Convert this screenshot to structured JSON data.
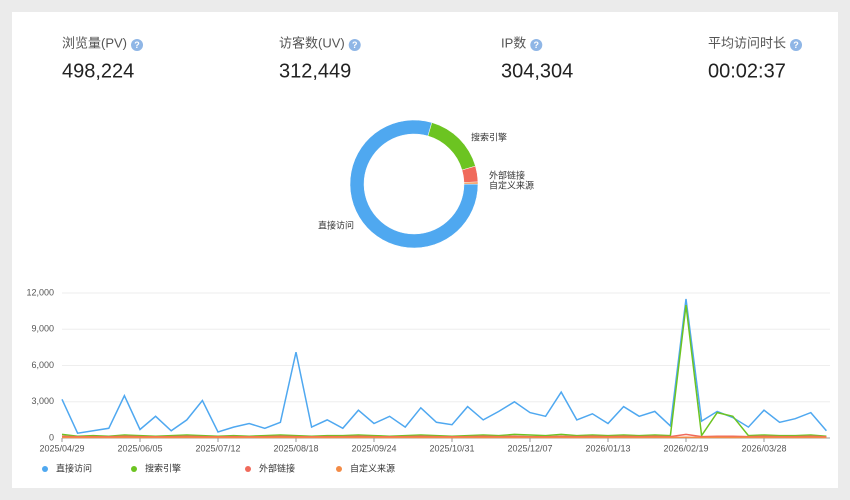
{
  "help_icon": "?",
  "stats": [
    {
      "label": "浏览量(PV)",
      "value": "498,224"
    },
    {
      "label": "访客数(UV)",
      "value": "312,449"
    },
    {
      "label": "IP数",
      "value": "304,304"
    },
    {
      "label": "平均访问时长",
      "value": "00:02:37"
    }
  ],
  "chart_data": [
    {
      "type": "pie",
      "categories": [
        "直接访问",
        "搜索引擎",
        "外部链接",
        "自定义来源"
      ],
      "values": [
        79.5,
        16,
        4,
        0.5
      ],
      "colors": [
        "#4fa8f0",
        "#6cc421",
        "#f06a5b",
        "#f38b46"
      ]
    },
    {
      "type": "line",
      "categories": [
        "2025/04/29",
        null,
        null,
        null,
        null,
        "2025/06/05",
        null,
        null,
        null,
        null,
        "2025/07/12",
        null,
        null,
        null,
        null,
        "2025/08/18",
        null,
        null,
        null,
        null,
        "2025/09/24",
        null,
        null,
        null,
        null,
        "2025/10/31",
        null,
        null,
        null,
        null,
        "2025/12/07",
        null,
        null,
        null,
        null,
        "2026/01/13",
        null,
        null,
        null,
        null,
        "2026/02/19",
        null,
        null,
        null,
        null,
        "2026/03/28",
        null,
        null,
        null,
        null
      ],
      "ylim": [
        0,
        12000
      ],
      "yticks": [
        0,
        {
          "value": 3000,
          "label": "3,000"
        },
        {
          "value": 6000,
          "label": "6,000"
        },
        {
          "value": 9000,
          "label": "9,000"
        },
        {
          "value": 12000,
          "label": "12,000"
        }
      ],
      "grid": true,
      "legend": "bottom",
      "series": [
        {
          "name": "直接访问",
          "color": "#4fa8f0",
          "values": [
            3200,
            400,
            600,
            800,
            3500,
            700,
            1800,
            600,
            1500,
            3100,
            500,
            900,
            1200,
            800,
            1300,
            7100,
            900,
            1500,
            800,
            2300,
            1200,
            1800,
            900,
            2500,
            1300,
            1100,
            2600,
            1500,
            2200,
            3000,
            2100,
            1800,
            3800,
            1500,
            2000,
            1200,
            2600,
            1800,
            2200,
            1000,
            11500,
            1400,
            2200,
            1700,
            900,
            2300,
            1300,
            1600,
            2100,
            600
          ]
        },
        {
          "name": "搜索引擎",
          "color": "#6cc421",
          "values": [
            300,
            150,
            200,
            150,
            250,
            200,
            150,
            200,
            250,
            200,
            150,
            200,
            150,
            200,
            250,
            200,
            150,
            200,
            200,
            250,
            200,
            150,
            200,
            250,
            200,
            150,
            200,
            250,
            200,
            300,
            250,
            200,
            300,
            200,
            250,
            200,
            250,
            200,
            250,
            200,
            11000,
            200,
            2100,
            1800,
            200,
            250,
            200,
            200,
            250,
            150
          ]
        },
        {
          "name": "外部链接",
          "color": "#f06a5b",
          "values": [
            150,
            100,
            120,
            100,
            150,
            120,
            100,
            120,
            150,
            120,
            100,
            120,
            100,
            120,
            150,
            120,
            100,
            120,
            120,
            150,
            120,
            100,
            120,
            150,
            120,
            100,
            120,
            150,
            120,
            150,
            120,
            100,
            150,
            120,
            150,
            120,
            150,
            120,
            150,
            120,
            300,
            120,
            150,
            150,
            120,
            150,
            120,
            120,
            150,
            100
          ]
        },
        {
          "name": "自定义来源",
          "color": "#f38b46",
          "values": [
            50,
            40,
            50,
            40,
            50,
            40,
            50,
            40,
            50,
            40,
            50,
            40,
            50,
            40,
            50,
            40,
            50,
            40,
            50,
            40,
            50,
            40,
            50,
            40,
            50,
            40,
            50,
            40,
            50,
            40,
            50,
            40,
            50,
            40,
            50,
            40,
            50,
            40,
            50,
            40,
            60,
            40,
            50,
            40,
            50,
            40,
            50,
            40,
            50,
            40
          ]
        }
      ]
    }
  ]
}
